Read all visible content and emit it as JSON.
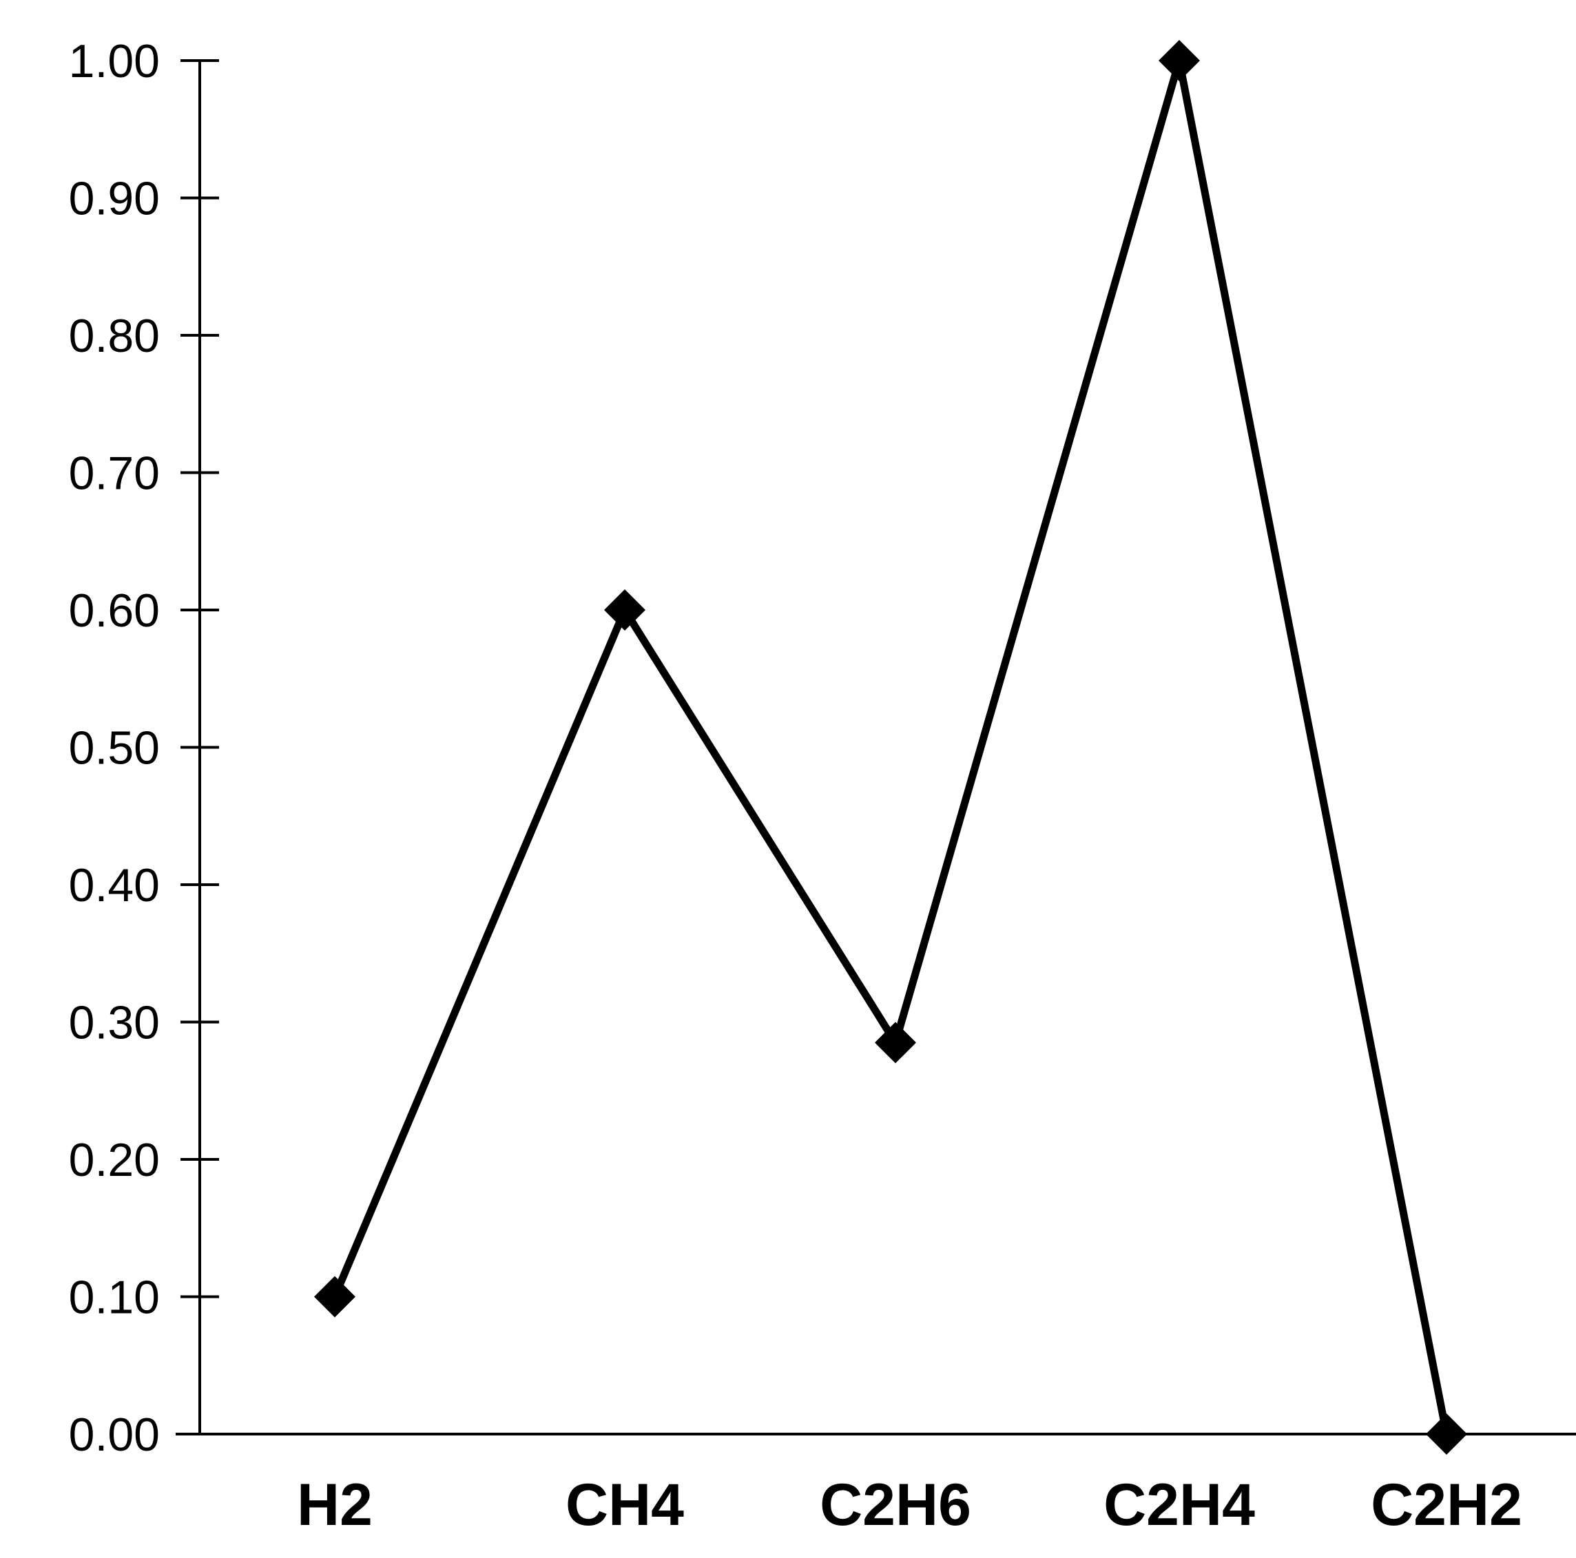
{
  "chart_data": {
    "type": "line",
    "categories": [
      "H2",
      "CH4",
      "C2H6",
      "C2H4",
      "C2H2"
    ],
    "series": [
      {
        "values": [
          0.1,
          0.6,
          0.285,
          1.0,
          0.0
        ],
        "color": "#000000",
        "marker": "diamond"
      }
    ],
    "yticks": [
      "0.00",
      "0.10",
      "0.20",
      "0.30",
      "0.40",
      "0.50",
      "0.60",
      "0.70",
      "0.80",
      "0.90",
      "1.00"
    ],
    "ylim": [
      0,
      1
    ],
    "xlabel": "",
    "ylabel": "",
    "title": "",
    "grid": false,
    "legend": "none"
  }
}
